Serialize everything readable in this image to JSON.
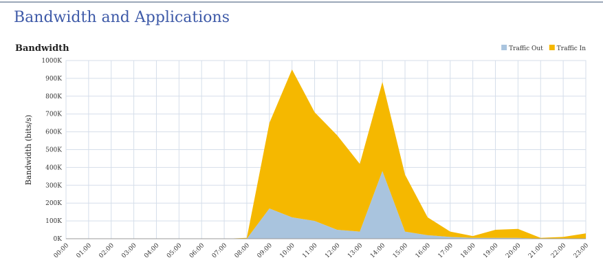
{
  "header": {
    "title": "Bandwidth and Applications"
  },
  "chart_data": {
    "type": "stacked-area",
    "title": "Bandwidth",
    "y_label": "Bandwidth (bits/s)",
    "categories": [
      "00:00",
      "01:00",
      "02:00",
      "03:00",
      "04:00",
      "05:00",
      "06:00",
      "07:00",
      "08:00",
      "09:00",
      "10:00",
      "11:00",
      "12:00",
      "13:00",
      "14:00",
      "15:00",
      "16:00",
      "17:00",
      "18:00",
      "19:00",
      "20:00",
      "21:00",
      "22:00",
      "23:00"
    ],
    "series": [
      {
        "name": "Traffic Out",
        "color": "#a9c4de",
        "values": [
          0,
          0,
          0,
          0,
          0,
          0,
          0,
          0,
          0,
          170000,
          120000,
          100000,
          50000,
          40000,
          380000,
          40000,
          20000,
          10000,
          5000,
          5000,
          5000,
          0,
          0,
          0
        ]
      },
      {
        "name": "Traffic In",
        "color": "#f5b800",
        "values": [
          0,
          0,
          0,
          0,
          0,
          0,
          0,
          0,
          5000,
          480000,
          830000,
          610000,
          530000,
          380000,
          500000,
          320000,
          100000,
          30000,
          10000,
          45000,
          50000,
          5000,
          10000,
          30000
        ]
      }
    ],
    "ylim": [
      0,
      1000000
    ],
    "yticks": [
      {
        "value": 0,
        "label": "0K"
      },
      {
        "value": 100000,
        "label": "100K"
      },
      {
        "value": 200000,
        "label": "200K"
      },
      {
        "value": 300000,
        "label": "300K"
      },
      {
        "value": 400000,
        "label": "400K"
      },
      {
        "value": 500000,
        "label": "500K"
      },
      {
        "value": 600000,
        "label": "600K"
      },
      {
        "value": 700000,
        "label": "700K"
      },
      {
        "value": 800000,
        "label": "800K"
      },
      {
        "value": 900000,
        "label": "900K"
      },
      {
        "value": 1000000,
        "label": "1000K"
      }
    ],
    "grid": true,
    "legend": "top-right"
  }
}
